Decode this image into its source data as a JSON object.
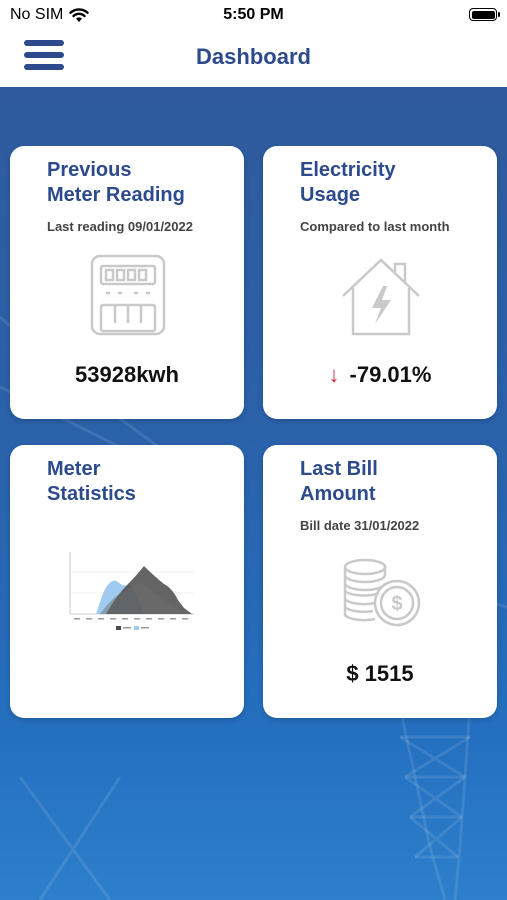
{
  "status_bar": {
    "carrier": "No SIM",
    "time": "5:50 PM"
  },
  "nav": {
    "title": "Dashboard"
  },
  "cards": {
    "previous_reading": {
      "title_line1": "Previous",
      "title_line2": "Meter Reading",
      "subtitle": "Last reading 09/01/2022",
      "value": "53928kwh"
    },
    "electricity_usage": {
      "title_line1": "Electricity",
      "title_line2": "Usage",
      "subtitle": "Compared to last month",
      "value": "-79.01%",
      "trend": "down"
    },
    "meter_statistics": {
      "title_line1": "Meter",
      "title_line2": "Statistics"
    },
    "last_bill": {
      "title_line1": "Last Bill",
      "title_line2": "Amount",
      "subtitle": "Bill date 31/01/2022",
      "value": "$ 1515"
    }
  },
  "colors": {
    "brand_blue": "#2c4a8c",
    "trend_down": "#d0243a"
  }
}
